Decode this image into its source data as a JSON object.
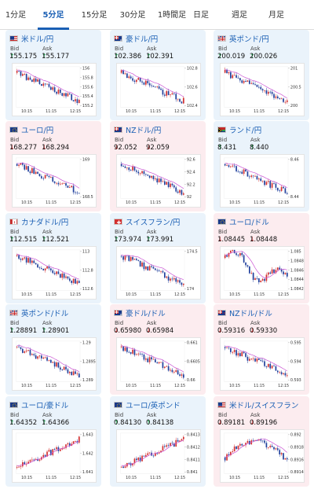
{
  "tabs": [
    {
      "label": "1分足"
    },
    {
      "label": "5分足"
    },
    {
      "label": "15分足"
    },
    {
      "label": "30分足"
    },
    {
      "label": "1時間足"
    },
    {
      "label": "日足"
    },
    {
      "label": "週足"
    },
    {
      "label": "月足"
    }
  ],
  "active_tab": "5分足",
  "colors": {
    "accent": "#1a5fb4",
    "up_card": "#eaf3fb",
    "down_card": "#fcecef",
    "candle_up": "#d32f2f",
    "candle_down": "#1f3f9c",
    "moving_average": "#c94fd2",
    "arrow_up": "#1aa34a",
    "arrow_down": "#d32f2f"
  },
  "labels": {
    "bid": "Bid",
    "ask": "Ask"
  },
  "pairs": [
    {
      "name": "米ドル/円",
      "flag": "us",
      "dir": "up",
      "bid": "155.175",
      "ask": "155.177",
      "yticks": [
        "156",
        "155.8",
        "155.6",
        "155.4",
        "155.2"
      ],
      "xticks": [
        "10:15",
        "11:15",
        "12:15"
      ],
      "trend": "down"
    },
    {
      "name": "豪ドル/円",
      "flag": "au",
      "dir": "up",
      "bid": "102.386",
      "ask": "102.391",
      "yticks": [
        "102.8",
        "102.6",
        "102.4"
      ],
      "xticks": [
        "10:15",
        "11:15",
        "12:15"
      ],
      "trend": "down"
    },
    {
      "name": "英ポンド/円",
      "flag": "uk",
      "dir": "up",
      "bid": "200.019",
      "ask": "200.026",
      "yticks": [
        "201",
        "200.5",
        "200"
      ],
      "xticks": [
        "10:15",
        "11:15",
        "12:15"
      ],
      "trend": "down"
    },
    {
      "name": "ユーロ/円",
      "flag": "eu",
      "dir": "down",
      "bid": "168.277",
      "ask": "168.294",
      "yticks": [
        "169",
        "168.5"
      ],
      "xticks": [
        "10:15",
        "11:15",
        "12:15"
      ],
      "trend": "down"
    },
    {
      "name": "NZドル/円",
      "flag": "nz",
      "dir": "down",
      "bid": "92.052",
      "ask": "92.059",
      "yticks": [
        "92.6",
        "92.4",
        "92.2",
        "92"
      ],
      "xticks": [
        "10:15",
        "11:15",
        "12:15"
      ],
      "trend": "down"
    },
    {
      "name": "ランド/円",
      "flag": "za",
      "dir": "up",
      "bid": "8.431",
      "ask": "8.440",
      "yticks": [
        "8.46",
        "8.44"
      ],
      "xticks": [
        "10:15",
        "11:15",
        "12:15"
      ],
      "trend": "down"
    },
    {
      "name": "カナダドル/円",
      "flag": "ca",
      "dir": "up",
      "bid": "112.515",
      "ask": "112.521",
      "yticks": [
        "113",
        "112.8",
        "112.6"
      ],
      "xticks": [
        "10:15",
        "11:15",
        "12:15"
      ],
      "trend": "down"
    },
    {
      "name": "スイスフラン/円",
      "flag": "ch",
      "dir": "up",
      "bid": "173.974",
      "ask": "173.991",
      "yticks": [
        "174.5",
        "174"
      ],
      "xticks": [
        "10:15",
        "11:15",
        "12:15"
      ],
      "trend": "down"
    },
    {
      "name": "ユーロ/ドル",
      "flag": "eu",
      "dir": "down",
      "bid": "1.08445",
      "ask": "1.08448",
      "yticks": [
        "1.085",
        "1.0848",
        "1.0846",
        "1.0844",
        "1.0842"
      ],
      "xticks": [
        "10:15",
        "11:15",
        "12:15"
      ],
      "trend": "mixed"
    },
    {
      "name": "英ポンド/ドル",
      "flag": "uk",
      "dir": "up",
      "bid": "1.28891",
      "ask": "1.28901",
      "yticks": [
        "1.29",
        "1.2895",
        "1.289"
      ],
      "xticks": [
        "10:15",
        "11:15",
        "12:15"
      ],
      "trend": "down"
    },
    {
      "name": "豪ドル/ドル",
      "flag": "au",
      "dir": "down",
      "bid": "0.65980",
      "ask": "0.65984",
      "yticks": [
        "0.661",
        "0.6605",
        "0.66"
      ],
      "xticks": [
        "10:15",
        "11:15",
        "12:15"
      ],
      "trend": "down"
    },
    {
      "name": "NZドル/ドル",
      "flag": "nz",
      "dir": "down",
      "bid": "0.59316",
      "ask": "0.59330",
      "yticks": [
        "0.595",
        "0.594",
        "0.593"
      ],
      "xticks": [
        "10:15",
        "11:15",
        "12:15"
      ],
      "trend": "down"
    },
    {
      "name": "ユーロ/豪ドル",
      "flag": "eu",
      "dir": "up",
      "bid": "1.64352",
      "ask": "1.64366",
      "yticks": [
        "1.643",
        "1.642",
        "1.641"
      ],
      "xticks": [
        "10:15",
        "11:15",
        "12:15"
      ],
      "trend": "up"
    },
    {
      "name": "ユーロ/英ポンド",
      "flag": "eu",
      "dir": "up",
      "bid": "0.84130",
      "ask": "0.84138",
      "yticks": [
        "0.8413",
        "0.8412",
        "0.8411",
        "0.841"
      ],
      "xticks": [
        "10:15",
        "11:15",
        "12:15"
      ],
      "trend": "up"
    },
    {
      "name": "米ドル/スイスフラン",
      "flag": "us",
      "dir": "down",
      "bid": "0.89181",
      "ask": "0.89196",
      "yticks": [
        "0.892",
        "0.8918",
        "0.8916",
        "0.8914"
      ],
      "xticks": [
        "10:15",
        "11:15",
        "12:15"
      ],
      "trend": "updown"
    }
  ]
}
